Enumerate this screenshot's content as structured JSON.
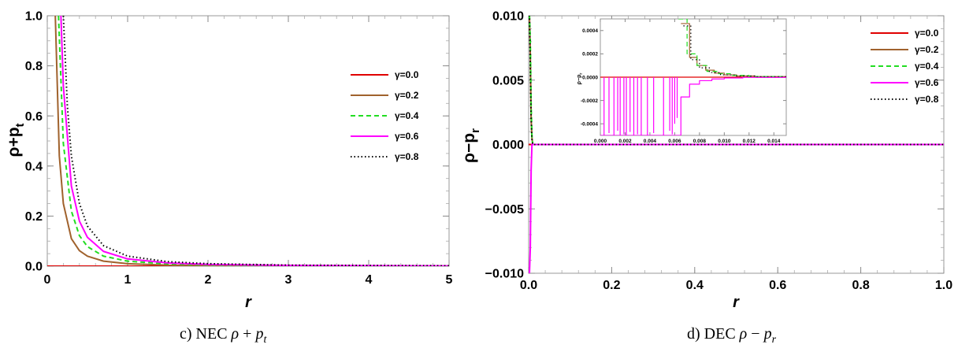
{
  "captions": {
    "left_prefix": "c) NEC",
    "left_math_a": "ρ",
    "left_math_op": "+",
    "left_math_b": "p",
    "left_math_sub": "t",
    "right_prefix": "d) DEC",
    "right_math_a": "ρ",
    "right_math_op": "−",
    "right_math_b": "p",
    "right_math_sub": "r"
  },
  "chart_data": [
    {
      "type": "line",
      "title": "",
      "xlabel": "r",
      "ylabel": "ρ+p",
      "ylabel_sub": "t",
      "xlim": [
        0,
        5
      ],
      "ylim": [
        0,
        1
      ],
      "xticks": [
        "0",
        "1",
        "2",
        "3",
        "4",
        "5"
      ],
      "yticks": [
        "0.0",
        "0.2",
        "0.4",
        "0.6",
        "0.8",
        "1.0"
      ],
      "grid": false,
      "legend_placement": "right",
      "series": [
        {
          "name": "γ=0.0",
          "color": "#e00000",
          "style": "solid",
          "x": [
            0,
            5
          ],
          "y": [
            0,
            0
          ]
        },
        {
          "name": "γ=0.2",
          "color": "#a0622d",
          "style": "solid",
          "x": [
            0.1,
            0.15,
            0.2,
            0.3,
            0.4,
            0.5,
            0.7,
            1.0,
            1.5,
            2.0,
            3.0,
            5.0
          ],
          "y": [
            1.0,
            0.44,
            0.25,
            0.11,
            0.062,
            0.04,
            0.02,
            0.01,
            0.004,
            0.0025,
            0.001,
            0.0004
          ]
        },
        {
          "name": "γ=0.4",
          "color": "#22dd22",
          "style": "dashed",
          "x": [
            0.14,
            0.2,
            0.3,
            0.4,
            0.5,
            0.7,
            1.0,
            1.5,
            2.0,
            3.0,
            5.0
          ],
          "y": [
            1.0,
            0.49,
            0.22,
            0.122,
            0.078,
            0.04,
            0.02,
            0.009,
            0.005,
            0.002,
            0.0008
          ]
        },
        {
          "name": "γ=0.6",
          "color": "#ff00ff",
          "style": "solid",
          "x": [
            0.17,
            0.2,
            0.3,
            0.4,
            0.5,
            0.7,
            1.0,
            1.5,
            2.0,
            3.0,
            5.0
          ],
          "y": [
            1.0,
            0.72,
            0.32,
            0.18,
            0.115,
            0.059,
            0.029,
            0.013,
            0.007,
            0.003,
            0.0012
          ]
        },
        {
          "name": "γ=0.8",
          "color": "#000000",
          "style": "dotted",
          "x": [
            0.2,
            0.25,
            0.3,
            0.4,
            0.5,
            0.7,
            1.0,
            1.5,
            2.0,
            3.0,
            5.0
          ],
          "y": [
            1.0,
            0.64,
            0.44,
            0.25,
            0.16,
            0.082,
            0.04,
            0.018,
            0.01,
            0.004,
            0.0016
          ]
        }
      ]
    },
    {
      "type": "line",
      "title": "",
      "xlabel": "r",
      "ylabel": "ρ−p",
      "ylabel_sub": "r",
      "xlim": [
        0,
        1
      ],
      "ylim": [
        -0.01,
        0.01
      ],
      "xticks": [
        "0.0",
        "0.2",
        "0.4",
        "0.6",
        "0.8",
        "1.0"
      ],
      "yticks": [
        "−0.010",
        "−0.005",
        "0.000",
        "0.005",
        "0.010"
      ],
      "grid": false,
      "legend_placement": "top-right",
      "series": [
        {
          "name": "γ=0.0",
          "color": "#e00000",
          "style": "solid",
          "x": [
            0,
            1
          ],
          "y": [
            0,
            0
          ]
        },
        {
          "name": "γ=0.2",
          "color": "#a0622d",
          "style": "solid",
          "x": [
            0.0,
            0.002,
            0.004,
            0.006,
            0.008,
            0.01,
            1.0
          ],
          "y": [
            0.01,
            0.01,
            0.007,
            0.002,
            0.0005,
            0,
            0
          ]
        },
        {
          "name": "γ=0.4",
          "color": "#22dd22",
          "style": "dashed",
          "x": [
            0.0,
            0.002,
            0.004,
            0.006,
            0.008,
            0.01,
            1.0
          ],
          "y": [
            0.01,
            0.01,
            0.008,
            0.003,
            0.0006,
            0,
            0
          ]
        },
        {
          "name": "γ=0.6",
          "color": "#ff00ff",
          "style": "solid",
          "x": [
            0.0,
            0.002,
            0.004,
            0.006,
            0.008,
            1.0
          ],
          "y": [
            -0.01,
            -0.01,
            -0.008,
            -0.002,
            0,
            0
          ]
        },
        {
          "name": "γ=0.8",
          "color": "#000000",
          "style": "dotted",
          "x": [
            0.0,
            0.002,
            0.004,
            0.006,
            0.008,
            0.01,
            1.0
          ],
          "y": [
            0.01,
            0.01,
            0.006,
            0.002,
            0.0004,
            0,
            0
          ]
        }
      ],
      "inset": {
        "xlabel": "",
        "ylabel": "ρ−p",
        "ylabel_sub": "r",
        "xlim": [
          0,
          0.015
        ],
        "ylim": [
          -0.0005,
          0.0005
        ],
        "xticks": [
          "0.000",
          "0.002",
          "0.004",
          "0.006",
          "0.008",
          "0.010",
          "0.012",
          "0.014"
        ],
        "yticks": [
          "-0.0004",
          "-0.0002",
          "0.0000",
          "0.0002",
          "0.0004"
        ],
        "steps": [
          {
            "name": "γ=0.2",
            "color": "#a0622d",
            "style": "solid",
            "x": [
              0.0065,
              0.0072,
              0.0072,
              0.0078,
              0.0078,
              0.0085,
              0.0085,
              0.0092,
              0.0092,
              0.01,
              0.01,
              0.011,
              0.011,
              0.0125,
              0.0125,
              0.015
            ],
            "y": [
              0.00046,
              0.00046,
              0.00017,
              0.00017,
              0.0001,
              0.0001,
              6e-05,
              6e-05,
              3.5e-05,
              3.5e-05,
              2e-05,
              2e-05,
              1e-05,
              1e-05,
              5e-06,
              5e-06
            ]
          },
          {
            "name": "γ=0.4",
            "color": "#22dd22",
            "style": "dashed",
            "x": [
              0.0063,
              0.007,
              0.007,
              0.0078,
              0.0078,
              0.0086,
              0.0086,
              0.0095,
              0.0095,
              0.0105,
              0.0105,
              0.012,
              0.012,
              0.015
            ],
            "y": [
              0.0005,
              0.0005,
              0.0002,
              0.0002,
              0.0001,
              0.0001,
              5e-05,
              5e-05,
              3e-05,
              3e-05,
              1.5e-05,
              1.5e-05,
              5e-06,
              5e-06
            ]
          },
          {
            "name": "γ=0.8",
            "color": "#000000",
            "style": "dotted",
            "x": [
              0.0067,
              0.0073,
              0.0073,
              0.008,
              0.008,
              0.0088,
              0.0088,
              0.0097,
              0.0097,
              0.0108,
              0.0108,
              0.0125,
              0.0125,
              0.015
            ],
            "y": [
              0.00044,
              0.00044,
              0.00015,
              0.00015,
              8e-05,
              8e-05,
              4e-05,
              4e-05,
              2e-05,
              2e-05,
              1e-05,
              1e-05,
              4e-06,
              4e-06
            ]
          },
          {
            "name": "γ=0.6",
            "color": "#ff00ff",
            "style": "solid",
            "x": [
              0.0,
              0.0065,
              0.0065,
              0.0072,
              0.0072,
              0.008,
              0.008,
              0.009,
              0.009,
              0.01,
              0.01,
              0.0115,
              0.0115,
              0.015
            ],
            "y": [
              -0.0005,
              -0.0005,
              -0.00017,
              -0.00017,
              -6e-05,
              -6e-05,
              -3e-05,
              -3e-05,
              -1.5e-05,
              -1.5e-05,
              -7e-06,
              -7e-06,
              -2e-06,
              -2e-06
            ]
          }
        ],
        "spikes": {
          "color": "#ff00ff",
          "x": [
            0.0003,
            0.0007,
            0.0011,
            0.0014,
            0.0016,
            0.0019,
            0.0021,
            0.0024,
            0.0027,
            0.003,
            0.0033,
            0.0038,
            0.0043,
            0.0051,
            0.0056,
            0.0058,
            0.006,
            0.0062
          ],
          "y": [
            -0.0005,
            -0.00048,
            -0.0005,
            -0.00046,
            -0.0005,
            -0.00049,
            -0.0005,
            -0.00047,
            -0.0005,
            -0.00049,
            -0.0005,
            -0.0005,
            -0.00048,
            -0.0005,
            -0.00046,
            -0.00049,
            -0.0004,
            -0.00035
          ]
        }
      }
    }
  ]
}
